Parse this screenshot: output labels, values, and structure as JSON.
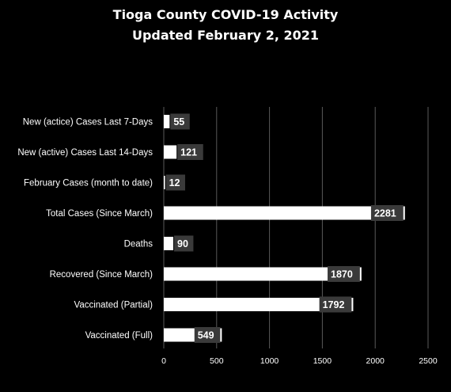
{
  "chart_data": {
    "type": "bar",
    "orientation": "horizontal",
    "title": [
      "Tioga County COVID-19 Activity",
      "Updated February 2, 2021"
    ],
    "categories": [
      "New (actice) Cases Last 7-Days",
      "New (active) Cases Last 14-Days",
      "February Cases (month to date)",
      "Total Cases (Since March)",
      "Deaths",
      "Recovered (Since March)",
      "Vaccinated (Partial)",
      "Vaccinated (Full)"
    ],
    "values": [
      55,
      121,
      12,
      2281,
      90,
      1870,
      1792,
      549
    ],
    "data_labels": [
      "55",
      "121",
      "12",
      "2281",
      "90",
      "1870",
      "1792",
      "549"
    ],
    "xlim": [
      0,
      2500
    ],
    "xticks": [
      "0",
      "500",
      "1000",
      "1500",
      "2000",
      "2500"
    ],
    "tick_values": [
      0,
      500,
      1000,
      1500,
      2000,
      2500
    ],
    "grid": true,
    "legend": "none",
    "colors": {
      "background": "#000000",
      "bar": "#ffffff",
      "label_box": "#3a3a3a",
      "text": "#ffffff",
      "grid": "#5a5a5a"
    }
  }
}
